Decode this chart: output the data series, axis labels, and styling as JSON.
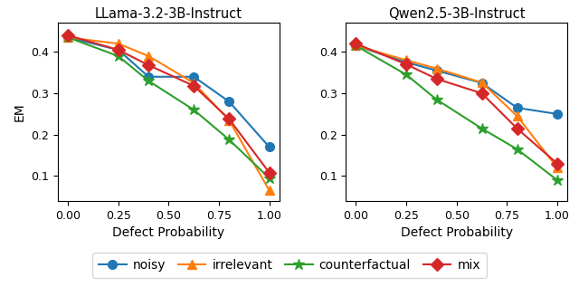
{
  "x": [
    0.0,
    0.25,
    0.4,
    0.625,
    0.8,
    1.0
  ],
  "llama": {
    "title": "LLama-3.2-3B-Instruct",
    "noisy": [
      0.435,
      0.405,
      0.34,
      0.34,
      0.28,
      0.17
    ],
    "irrelevant": [
      0.435,
      0.42,
      0.39,
      0.325,
      0.235,
      0.065
    ],
    "counterfactual": [
      0.435,
      0.39,
      0.33,
      0.26,
      0.188,
      0.095
    ],
    "mix": [
      0.44,
      0.405,
      0.368,
      0.318,
      0.238,
      0.108
    ]
  },
  "qwen": {
    "title": "Qwen2.5-3B-Instruct",
    "noisy": [
      0.415,
      0.375,
      0.355,
      0.325,
      0.265,
      0.25
    ],
    "irrelevant": [
      0.415,
      0.38,
      0.36,
      0.326,
      0.245,
      0.12
    ],
    "counterfactual": [
      0.415,
      0.345,
      0.285,
      0.215,
      0.165,
      0.09
    ],
    "mix": [
      0.42,
      0.37,
      0.335,
      0.3,
      0.215,
      0.13
    ]
  },
  "colors": {
    "noisy": "#1f77b4",
    "irrelevant": "#ff7f0e",
    "counterfactual": "#2ca02c",
    "mix": "#d62728"
  },
  "markers": {
    "noisy": "o",
    "irrelevant": "^",
    "counterfactual": "*",
    "mix": "D"
  },
  "xlabel": "Defect Probability",
  "ylabel": "EM",
  "ylim": [
    0.04,
    0.47
  ],
  "xlim": [
    -0.05,
    1.05
  ],
  "yticks": [
    0.1,
    0.2,
    0.3,
    0.4
  ],
  "xticks": [
    0.0,
    0.25,
    0.5,
    0.75,
    1.0
  ],
  "xtick_labels": [
    "0.00",
    "0.25",
    "0.50",
    "0.75",
    "1.00"
  ]
}
